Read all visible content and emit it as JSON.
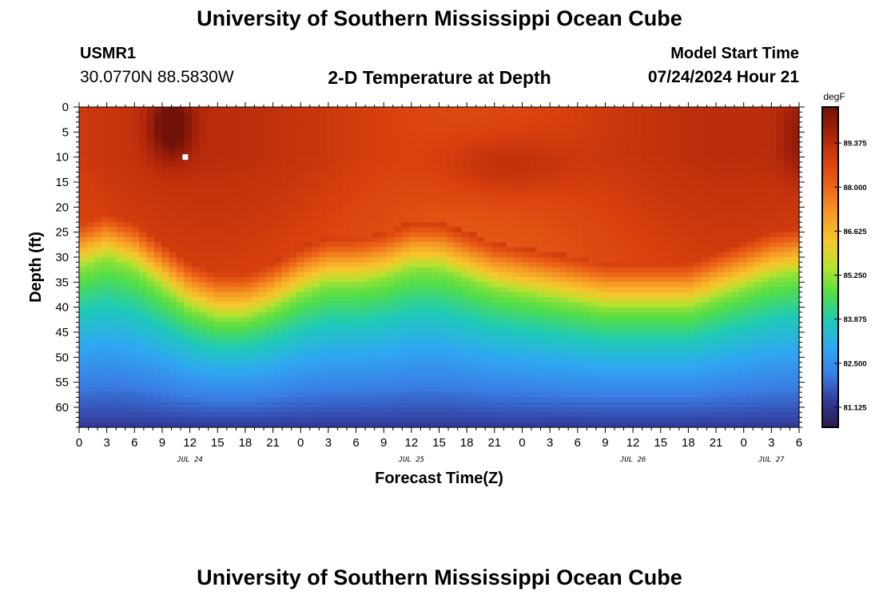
{
  "header": {
    "title": "University of Southern Mississippi Ocean Cube",
    "station_id": "USMR1",
    "coords": "30.0770N  88.5830W",
    "plot_title": "2-D Temperature at Depth",
    "model_label": "Model Start Time",
    "model_time": "07/24/2024 Hour 21"
  },
  "footer": {
    "title": "University of Southern Mississippi Ocean Cube"
  },
  "colors": {
    "ramp": [
      "#2a1848",
      "#333a9a",
      "#3a7fe6",
      "#2fa8f2",
      "#1fcab8",
      "#52de48",
      "#b8e22f",
      "#f6c62c",
      "#f69a25",
      "#ec6518",
      "#d8400e",
      "#a8220a",
      "#701208"
    ],
    "marker": "#ffffff"
  },
  "chart_data": {
    "type": "heatmap",
    "title": "2-D Temperature at Depth",
    "xlabel": "Forecast Time(Z)",
    "ylabel": "Depth (ft)",
    "x_range_hours": [
      0,
      78
    ],
    "ylim": [
      0,
      64
    ],
    "y_ticks": [
      0,
      5,
      10,
      15,
      20,
      25,
      30,
      35,
      40,
      45,
      50,
      55,
      60
    ],
    "x_ticks": [
      {
        "h": 0,
        "label": "0"
      },
      {
        "h": 3,
        "label": "3"
      },
      {
        "h": 6,
        "label": "6"
      },
      {
        "h": 9,
        "label": "9"
      },
      {
        "h": 12,
        "label": "12"
      },
      {
        "h": 15,
        "label": "15"
      },
      {
        "h": 18,
        "label": "18"
      },
      {
        "h": 21,
        "label": "21"
      },
      {
        "h": 24,
        "label": "0"
      },
      {
        "h": 27,
        "label": "3"
      },
      {
        "h": 30,
        "label": "6"
      },
      {
        "h": 33,
        "label": "9"
      },
      {
        "h": 36,
        "label": "12"
      },
      {
        "h": 39,
        "label": "15"
      },
      {
        "h": 42,
        "label": "18"
      },
      {
        "h": 45,
        "label": "21"
      },
      {
        "h": 48,
        "label": "0"
      },
      {
        "h": 51,
        "label": "3"
      },
      {
        "h": 54,
        "label": "6"
      },
      {
        "h": 57,
        "label": "9"
      },
      {
        "h": 60,
        "label": "12"
      },
      {
        "h": 63,
        "label": "15"
      },
      {
        "h": 66,
        "label": "18"
      },
      {
        "h": 69,
        "label": "21"
      },
      {
        "h": 72,
        "label": "0"
      },
      {
        "h": 75,
        "label": "3"
      },
      {
        "h": 78,
        "label": "6"
      }
    ],
    "date_labels": [
      {
        "h": 12,
        "label": "JUL 24"
      },
      {
        "h": 36,
        "label": "JUL 25"
      },
      {
        "h": 60,
        "label": "JUL 26"
      },
      {
        "h": 75,
        "label": "JUL 27"
      }
    ],
    "colorbar": {
      "unit": "degF",
      "min": 80.5,
      "max": 90.5,
      "ticks": [
        89.375,
        88.0,
        86.625,
        85.25,
        83.875,
        82.5,
        81.125
      ],
      "tick_labels": [
        "89.375",
        "88.000",
        "86.625",
        "85.250",
        "83.875",
        "82.500",
        "81.125"
      ]
    },
    "thermocline_depth_ft": [
      {
        "h": 0,
        "d": 23
      },
      {
        "h": 3,
        "d": 21
      },
      {
        "h": 6,
        "d": 23
      },
      {
        "h": 9,
        "d": 27
      },
      {
        "h": 12,
        "d": 31
      },
      {
        "h": 15,
        "d": 33
      },
      {
        "h": 18,
        "d": 33
      },
      {
        "h": 21,
        "d": 31
      },
      {
        "h": 24,
        "d": 28
      },
      {
        "h": 27,
        "d": 26
      },
      {
        "h": 30,
        "d": 26
      },
      {
        "h": 33,
        "d": 25
      },
      {
        "h": 36,
        "d": 23
      },
      {
        "h": 39,
        "d": 23
      },
      {
        "h": 42,
        "d": 25
      },
      {
        "h": 45,
        "d": 27
      },
      {
        "h": 48,
        "d": 28
      },
      {
        "h": 51,
        "d": 29
      },
      {
        "h": 54,
        "d": 30
      },
      {
        "h": 57,
        "d": 31
      },
      {
        "h": 60,
        "d": 31
      },
      {
        "h": 63,
        "d": 31
      },
      {
        "h": 66,
        "d": 31
      },
      {
        "h": 69,
        "d": 29
      },
      {
        "h": 72,
        "d": 27
      },
      {
        "h": 75,
        "d": 25
      },
      {
        "h": 78,
        "d": 24
      }
    ],
    "surface_temp_degF": 89.0,
    "mid_temp_degF": 85.3,
    "bottom_temp_degF": 81.3,
    "warm_anomalies": [
      {
        "h": 10,
        "d": 4,
        "h_spread": 2.2,
        "d_spread": 6,
        "delta_degF": 1.7
      },
      {
        "h": 46,
        "d": 12,
        "h_spread": 7,
        "d_spread": 6,
        "delta_degF": 0.6
      },
      {
        "h": 78,
        "d": 6,
        "h_spread": 2,
        "d_spread": 8,
        "delta_degF": 0.8
      }
    ],
    "marker": {
      "h": 11.5,
      "d": 10
    }
  }
}
